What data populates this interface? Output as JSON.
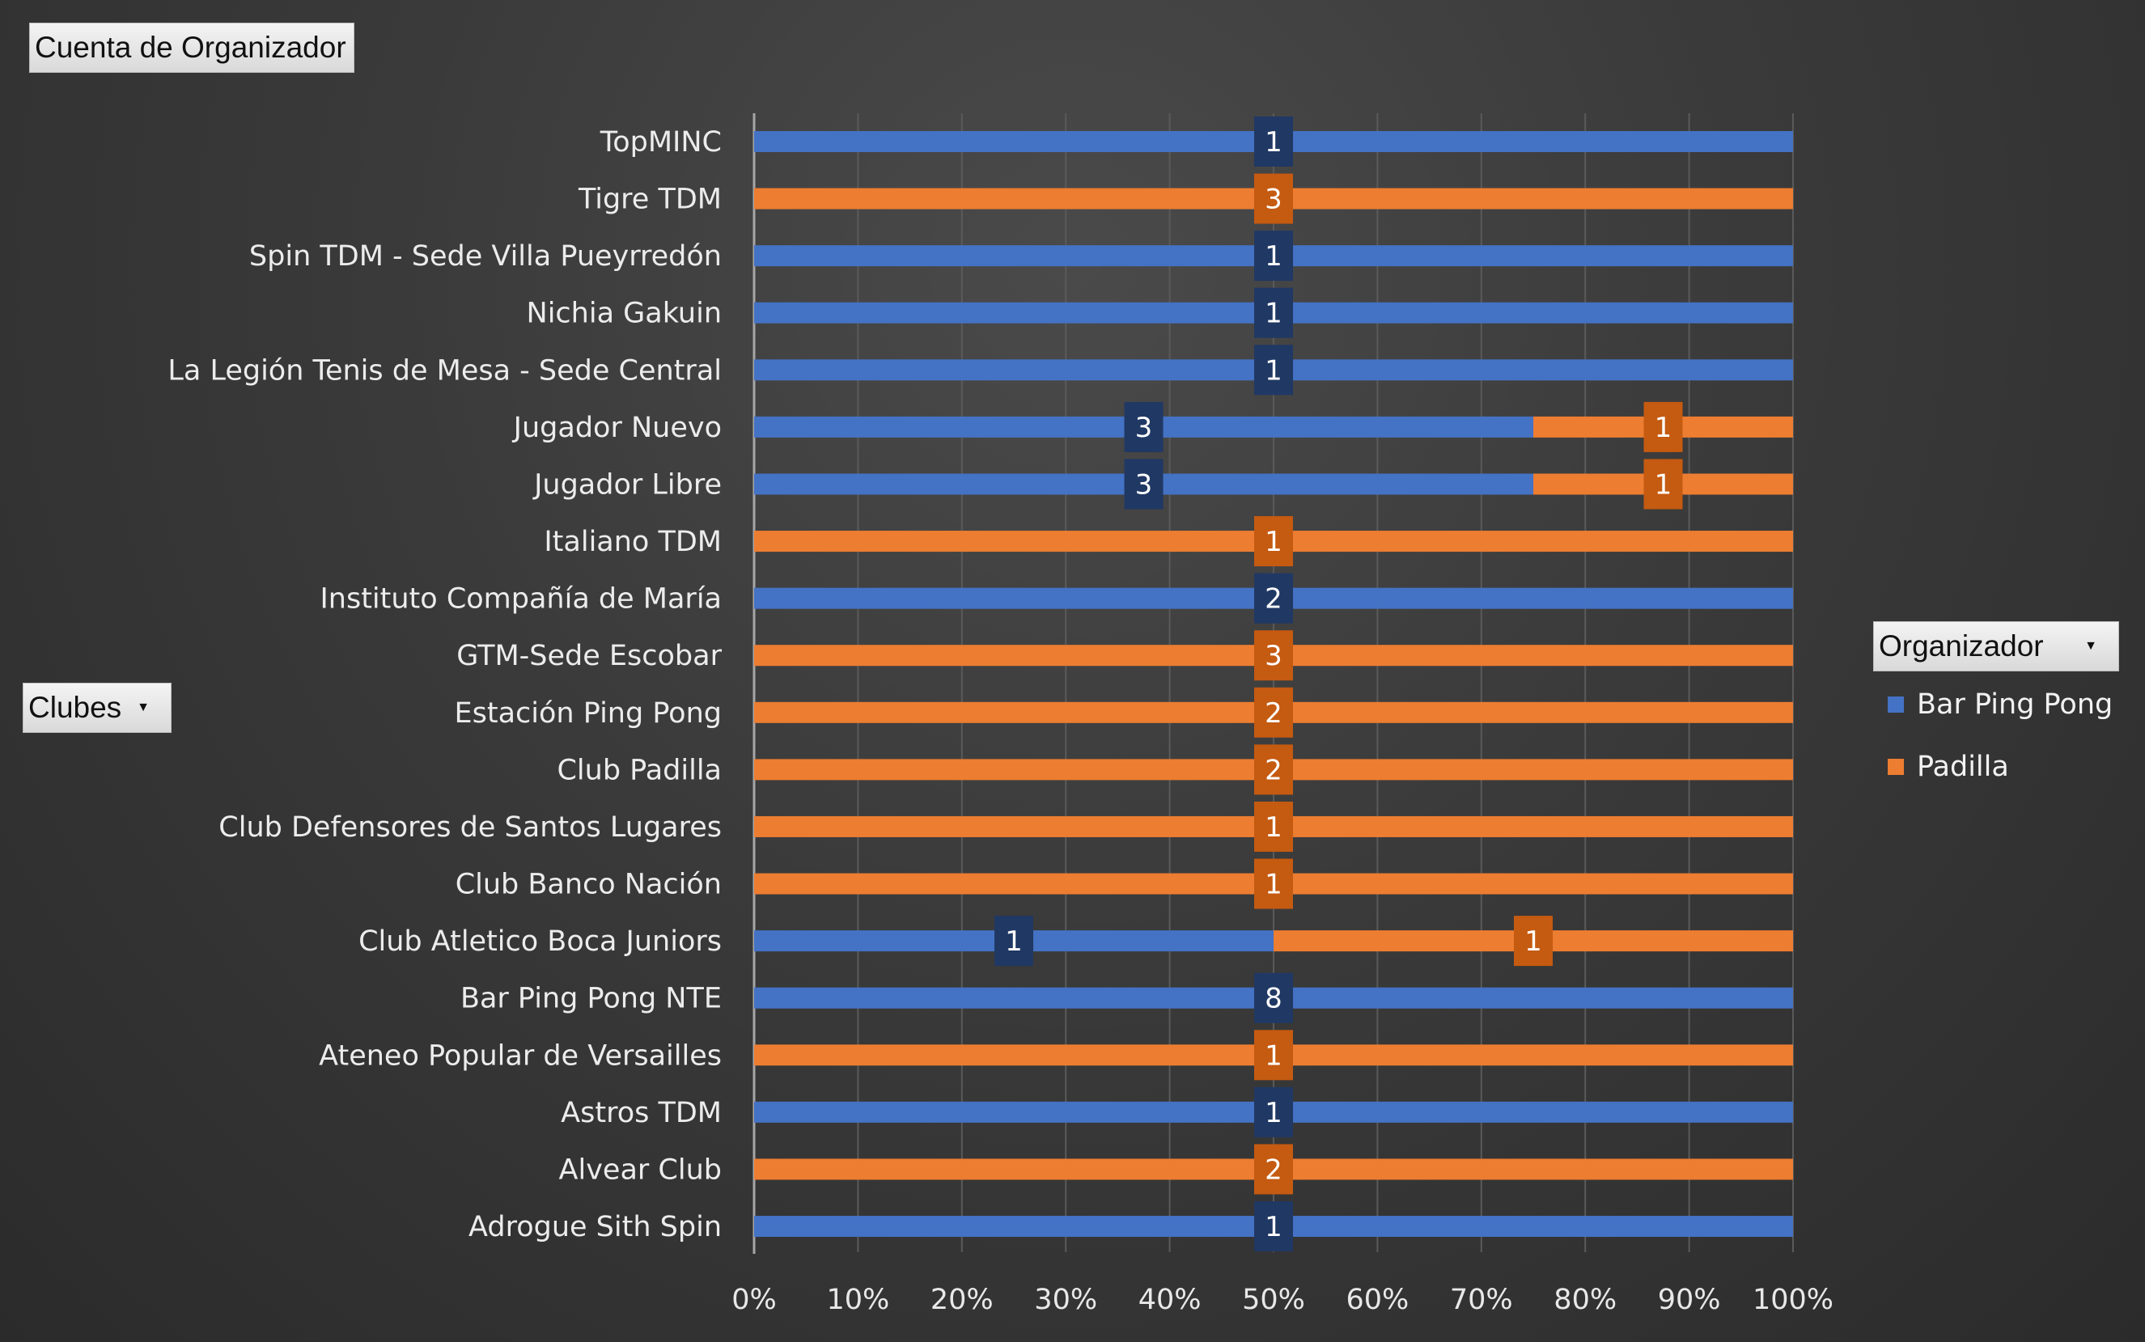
{
  "header": {
    "title": "Cuenta de Organizador"
  },
  "filters": {
    "rows_field": "Clubes",
    "legend_field": "Organizador"
  },
  "colors": {
    "bar_ping_pong": "#4472C4",
    "padilla": "#ED7D31",
    "label_blue": "#203864",
    "label_orange": "#C55A11"
  },
  "chart_data": {
    "type": "bar",
    "orientation": "horizontal",
    "stacked": "100%",
    "categories": [
      "TopMINC",
      "Tigre TDM",
      "Spin TDM - Sede Villa Pueyrredón",
      "Nichia Gakuin",
      "La Legión Tenis de Mesa - Sede Central",
      "Jugador Nuevo",
      "Jugador Libre",
      "Italiano TDM",
      "Instituto Compañía de María",
      "GTM-Sede Escobar ",
      "Estación Ping Pong",
      "Club Padilla",
      "Club Defensores de Santos Lugares",
      "Club Banco Nación",
      "Club Atletico Boca Juniors",
      "Bar Ping Pong NTE",
      "Ateneo Popular de Versailles",
      "Astros TDM ",
      "Alvear Club",
      "Adrogue Sith Spin"
    ],
    "series": [
      {
        "name": "Bar Ping Pong",
        "values": [
          1,
          0,
          1,
          1,
          1,
          3,
          3,
          0,
          2,
          0,
          0,
          0,
          0,
          0,
          1,
          8,
          0,
          1,
          0,
          1
        ]
      },
      {
        "name": "Padilla",
        "values": [
          0,
          3,
          0,
          0,
          0,
          1,
          1,
          1,
          0,
          3,
          2,
          2,
          1,
          1,
          1,
          0,
          1,
          0,
          2,
          0
        ]
      }
    ],
    "x_ticks": [
      "0%",
      "10%",
      "20%",
      "30%",
      "40%",
      "50%",
      "60%",
      "70%",
      "80%",
      "90%",
      "100%"
    ],
    "xlim": [
      0,
      100
    ],
    "grid": true,
    "legend_position": "right"
  }
}
